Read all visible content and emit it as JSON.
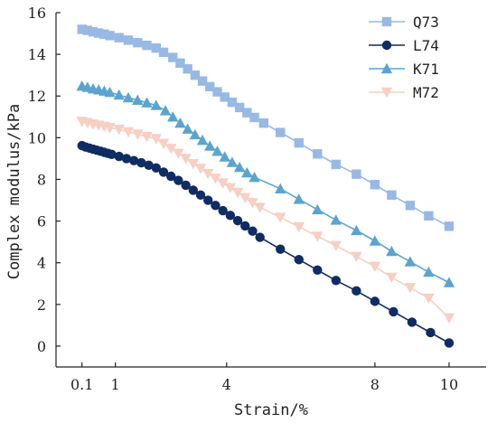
{
  "chart_data": {
    "type": "line",
    "title": "",
    "xlabel": "Strain/%",
    "ylabel": "Complex modulus/kPa",
    "xlim": [
      -0.6,
      11
    ],
    "ylim": [
      -1,
      16
    ],
    "x_ticks": [
      {
        "value": 0.1,
        "label": "0.1"
      },
      {
        "value": 1,
        "label": "1"
      },
      {
        "value": 4,
        "label": "4"
      },
      {
        "value": 8,
        "label": "8"
      },
      {
        "value": 10,
        "label": "10"
      }
    ],
    "y_ticks": [
      0,
      2,
      4,
      6,
      8,
      10,
      12,
      14,
      16
    ],
    "grid": false,
    "legend_position": "top-right",
    "series": [
      {
        "name": "Q73",
        "color": "#98b9e3",
        "marker": "square",
        "points": [
          [
            0.1,
            15.2
          ],
          [
            0.25,
            15.15
          ],
          [
            0.4,
            15.08
          ],
          [
            0.55,
            15.02
          ],
          [
            0.7,
            14.97
          ],
          [
            0.85,
            14.9
          ],
          [
            1.1,
            14.8
          ],
          [
            1.35,
            14.68
          ],
          [
            1.6,
            14.56
          ],
          [
            1.85,
            14.43
          ],
          [
            2.1,
            14.3
          ],
          [
            2.3,
            14.1
          ],
          [
            2.55,
            13.85
          ],
          [
            2.75,
            13.58
          ],
          [
            2.95,
            13.3
          ],
          [
            3.15,
            13.0
          ],
          [
            3.35,
            12.72
          ],
          [
            3.55,
            12.45
          ],
          [
            3.75,
            12.2
          ],
          [
            3.95,
            11.95
          ],
          [
            4.15,
            11.7
          ],
          [
            4.35,
            11.45
          ],
          [
            4.55,
            11.2
          ],
          [
            4.75,
            10.97
          ],
          [
            5.0,
            10.7
          ],
          [
            5.45,
            10.25
          ],
          [
            5.95,
            9.75
          ],
          [
            6.45,
            9.22
          ],
          [
            6.95,
            8.72
          ],
          [
            7.5,
            8.25
          ],
          [
            8.0,
            7.75
          ],
          [
            8.45,
            7.25
          ],
          [
            8.95,
            6.75
          ],
          [
            9.45,
            6.25
          ],
          [
            10.0,
            5.75
          ]
        ]
      },
      {
        "name": "L74",
        "color": "#0f2c63",
        "marker": "circle",
        "points": [
          [
            0.1,
            9.62
          ],
          [
            0.2,
            9.55
          ],
          [
            0.3,
            9.5
          ],
          [
            0.4,
            9.45
          ],
          [
            0.5,
            9.4
          ],
          [
            0.6,
            9.35
          ],
          [
            0.7,
            9.3
          ],
          [
            0.8,
            9.25
          ],
          [
            0.9,
            9.2
          ],
          [
            1.1,
            9.1
          ],
          [
            1.3,
            9.0
          ],
          [
            1.5,
            8.9
          ],
          [
            1.7,
            8.8
          ],
          [
            1.9,
            8.68
          ],
          [
            2.1,
            8.55
          ],
          [
            2.3,
            8.35
          ],
          [
            2.5,
            8.15
          ],
          [
            2.7,
            7.95
          ],
          [
            2.9,
            7.72
          ],
          [
            3.1,
            7.48
          ],
          [
            3.3,
            7.25
          ],
          [
            3.5,
            7.0
          ],
          [
            3.7,
            6.75
          ],
          [
            3.9,
            6.5
          ],
          [
            4.1,
            6.27
          ],
          [
            4.3,
            6.02
          ],
          [
            4.5,
            5.77
          ],
          [
            4.7,
            5.52
          ],
          [
            4.9,
            5.22
          ],
          [
            5.45,
            4.65
          ],
          [
            5.95,
            4.15
          ],
          [
            6.45,
            3.65
          ],
          [
            6.95,
            3.15
          ],
          [
            7.5,
            2.65
          ],
          [
            8.0,
            2.15
          ],
          [
            8.5,
            1.65
          ],
          [
            9.0,
            1.15
          ],
          [
            9.5,
            0.65
          ],
          [
            10.0,
            0.15
          ]
        ]
      },
      {
        "name": "K71",
        "color": "#5ba4d0",
        "marker": "triangle-up",
        "points": [
          [
            0.1,
            12.48
          ],
          [
            0.25,
            12.42
          ],
          [
            0.4,
            12.35
          ],
          [
            0.55,
            12.3
          ],
          [
            0.7,
            12.24
          ],
          [
            0.85,
            12.18
          ],
          [
            1.1,
            12.05
          ],
          [
            1.35,
            11.92
          ],
          [
            1.6,
            11.8
          ],
          [
            1.85,
            11.68
          ],
          [
            2.1,
            11.55
          ],
          [
            2.35,
            11.3
          ],
          [
            2.55,
            11.0
          ],
          [
            2.75,
            10.7
          ],
          [
            2.95,
            10.42
          ],
          [
            3.15,
            10.15
          ],
          [
            3.35,
            9.88
          ],
          [
            3.55,
            9.6
          ],
          [
            3.75,
            9.35
          ],
          [
            3.95,
            9.08
          ],
          [
            4.15,
            8.82
          ],
          [
            4.35,
            8.58
          ],
          [
            4.55,
            8.32
          ],
          [
            4.75,
            8.1
          ],
          [
            5.45,
            7.55
          ],
          [
            5.95,
            7.05
          ],
          [
            6.45,
            6.55
          ],
          [
            6.95,
            6.05
          ],
          [
            7.5,
            5.55
          ],
          [
            8.0,
            5.05
          ],
          [
            8.45,
            4.55
          ],
          [
            8.95,
            4.05
          ],
          [
            9.45,
            3.55
          ],
          [
            10.0,
            3.05
          ]
        ]
      },
      {
        "name": "M72",
        "color": "#f7cfc3",
        "marker": "triangle-down",
        "points": [
          [
            0.1,
            10.78
          ],
          [
            0.25,
            10.72
          ],
          [
            0.4,
            10.65
          ],
          [
            0.55,
            10.6
          ],
          [
            0.7,
            10.54
          ],
          [
            0.85,
            10.48
          ],
          [
            1.1,
            10.4
          ],
          [
            1.35,
            10.28
          ],
          [
            1.6,
            10.17
          ],
          [
            1.85,
            10.05
          ],
          [
            2.1,
            9.95
          ],
          [
            2.3,
            9.72
          ],
          [
            2.5,
            9.48
          ],
          [
            2.7,
            9.25
          ],
          [
            2.9,
            9.0
          ],
          [
            3.1,
            8.75
          ],
          [
            3.3,
            8.52
          ],
          [
            3.5,
            8.28
          ],
          [
            3.7,
            8.05
          ],
          [
            3.9,
            7.82
          ],
          [
            4.1,
            7.6
          ],
          [
            4.3,
            7.37
          ],
          [
            4.5,
            7.12
          ],
          [
            4.7,
            6.88
          ],
          [
            4.9,
            6.65
          ],
          [
            5.45,
            6.18
          ],
          [
            5.95,
            5.72
          ],
          [
            6.45,
            5.27
          ],
          [
            6.95,
            4.82
          ],
          [
            7.5,
            4.3
          ],
          [
            8.0,
            3.82
          ],
          [
            8.45,
            3.3
          ],
          [
            8.95,
            2.8
          ],
          [
            9.45,
            2.3
          ],
          [
            10.0,
            1.35
          ]
        ]
      }
    ]
  }
}
